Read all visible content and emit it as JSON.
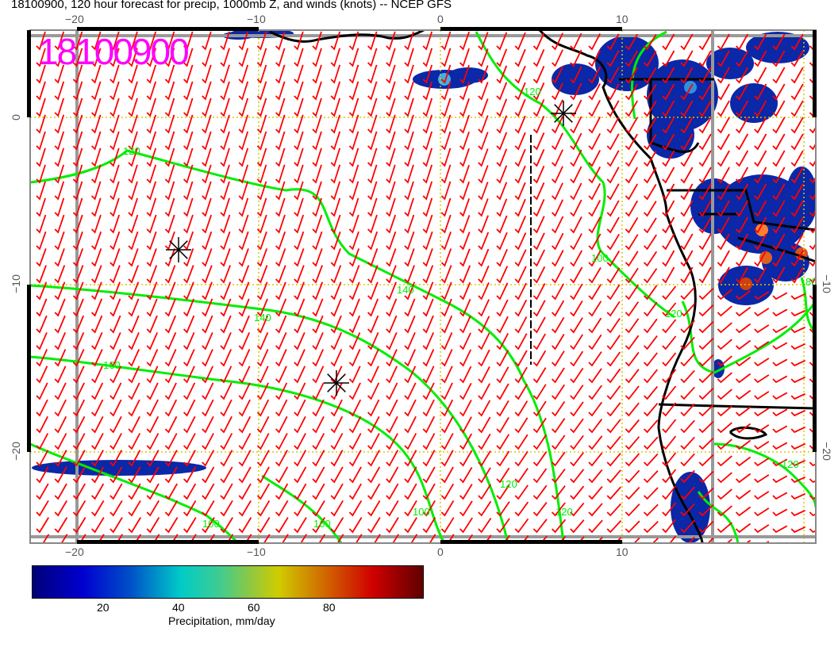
{
  "title": "18100900, 120 hour forecast for precip, 1000mb Z, and winds (knots) -- NCEP GFS",
  "stamp": "18100900",
  "map": {
    "lon_range": [
      -22.6,
      20.7
    ],
    "lat_range": [
      -25.4,
      5.2
    ],
    "lon_ticks": [
      "−20",
      "−10",
      "0",
      "10"
    ],
    "lat_ticks": [
      "0",
      "−10",
      "−20"
    ],
    "contour_labels": [
      "120",
      "120",
      "140",
      "160",
      "100",
      "100",
      "120",
      "140",
      "160",
      "100",
      "120",
      "80",
      "120",
      "120"
    ],
    "colors": {
      "wind": "#ff0000",
      "contour": "#00ee00",
      "coast": "#000000",
      "grid": "#d8c800",
      "stamp": "#ff00ff"
    }
  },
  "colorbar": {
    "ticks": [
      "20",
      "40",
      "60",
      "80"
    ],
    "label": "Precipitation, mm/day",
    "range": [
      0,
      96
    ]
  }
}
